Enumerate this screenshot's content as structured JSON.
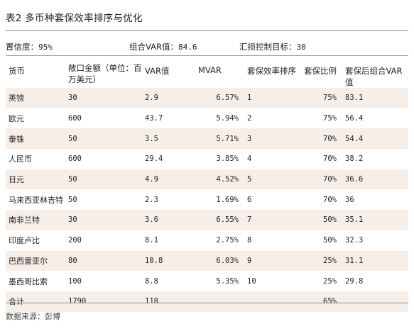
{
  "title": "表2 多币种套保效率排序与优化",
  "meta": {
    "confidence_label": "置信度：",
    "confidence_value": "95%",
    "portfolio_var_label": "组合VAR值：",
    "portfolio_var_value": "84.6",
    "target_label": "汇损控制目标：",
    "target_value": "30"
  },
  "table": {
    "headers": [
      "货币",
      "敞口金额（单位：百万美元）",
      "VAR值",
      "MVAR",
      "套保效率排序",
      "套保比例",
      "套保后组合VAR值"
    ],
    "rows": [
      {
        "currency": "英镑",
        "exposure": "30",
        "var": "2.9",
        "mvar": "6.57%",
        "rank": "1",
        "ratio": "75%",
        "post_var": "83.1"
      },
      {
        "currency": "欧元",
        "exposure": "600",
        "var": "43.7",
        "mvar": "5.94%",
        "rank": "2",
        "ratio": "75%",
        "post_var": "56.4"
      },
      {
        "currency": "泰铢",
        "exposure": "50",
        "var": "3.5",
        "mvar": "5.71%",
        "rank": "3",
        "ratio": "70%",
        "post_var": "54.4"
      },
      {
        "currency": "人民币",
        "exposure": "600",
        "var": "29.4",
        "mvar": "3.85%",
        "rank": "4",
        "ratio": "70%",
        "post_var": "38.2"
      },
      {
        "currency": "日元",
        "exposure": "50",
        "var": "4.9",
        "mvar": "4.52%",
        "rank": "5",
        "ratio": "70%",
        "post_var": "36.6"
      },
      {
        "currency": "马来西亚林吉特",
        "exposure": "50",
        "var": "2.3",
        "mvar": "1.69%",
        "rank": "6",
        "ratio": "70%",
        "post_var": "36"
      },
      {
        "currency": "南非兰特",
        "exposure": "30",
        "var": "3.6",
        "mvar": "6.55%",
        "rank": "7",
        "ratio": "50%",
        "post_var": "35.1"
      },
      {
        "currency": "印度卢比",
        "exposure": "200",
        "var": "8.1",
        "mvar": "2.75%",
        "rank": "8",
        "ratio": "50%",
        "post_var": "32.3"
      },
      {
        "currency": "巴西雷亚尔",
        "exposure": "80",
        "var": "10.8",
        "mvar": "6.03%",
        "rank": "9",
        "ratio": "25%",
        "post_var": "31.1"
      },
      {
        "currency": "墨西哥比索",
        "exposure": "100",
        "var": "8.8",
        "mvar": "5.35%",
        "rank": "10",
        "ratio": "25%",
        "post_var": "29.8"
      },
      {
        "currency": "合计",
        "exposure": "1790",
        "var": "118",
        "mvar": "",
        "rank": "",
        "ratio": "65%",
        "post_var": ""
      }
    ]
  },
  "source": "数据来源：彭博",
  "colors": {
    "row_shade": "#f7eee8",
    "rule": "#8a8a8a"
  }
}
